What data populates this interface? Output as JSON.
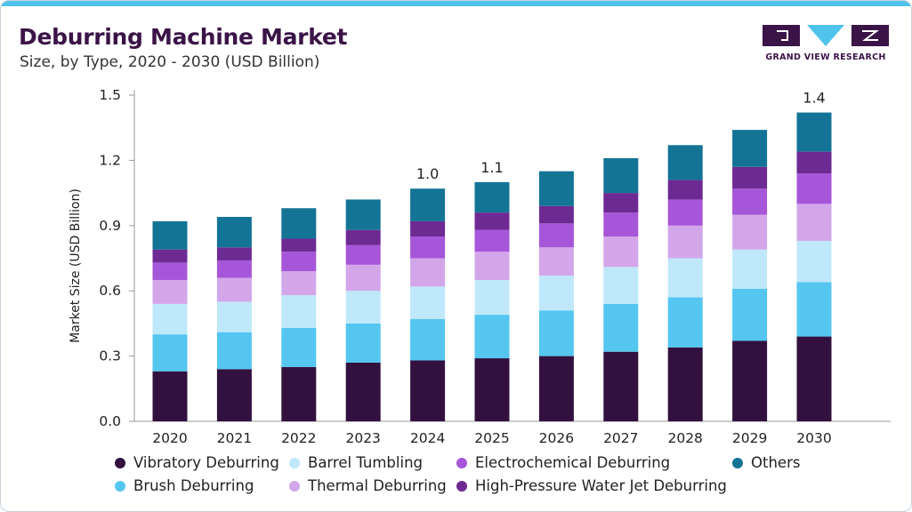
{
  "header": {
    "title": "Deburring Machine Market",
    "subtitle": "Size, by Type, 2020 - 2030 (USD Billion)"
  },
  "logo": {
    "text": "GRAND VIEW RESEARCH",
    "colors": {
      "dark": "#3b1447",
      "light": "#4fc3ec"
    }
  },
  "chart_data": {
    "type": "bar",
    "stacked": true,
    "title": "Deburring Machine Market",
    "subtitle": "Size, by Type, 2020 - 2030 (USD Billion)",
    "xlabel": "",
    "ylabel": "Market Size (USD Billion)",
    "ylim": [
      0,
      1.5
    ],
    "yticks": [
      "0.0",
      "0.3",
      "0.6",
      "0.9",
      "1.2",
      "1.5"
    ],
    "grid": false,
    "legend_position": "bottom",
    "categories": [
      "2020",
      "2021",
      "2022",
      "2023",
      "2024",
      "2025",
      "2026",
      "2027",
      "2028",
      "2029",
      "2030"
    ],
    "series": [
      {
        "name": "Vibratory Deburring",
        "color": "#32113f",
        "values": [
          0.23,
          0.24,
          0.25,
          0.27,
          0.28,
          0.29,
          0.3,
          0.32,
          0.34,
          0.37,
          0.39
        ]
      },
      {
        "name": "Brush Deburring",
        "color": "#54c6f0",
        "values": [
          0.17,
          0.17,
          0.18,
          0.18,
          0.19,
          0.2,
          0.21,
          0.22,
          0.23,
          0.24,
          0.25
        ]
      },
      {
        "name": "Barrel Tumbling",
        "color": "#bfe8fa",
        "values": [
          0.14,
          0.14,
          0.15,
          0.15,
          0.15,
          0.16,
          0.16,
          0.17,
          0.18,
          0.18,
          0.19
        ]
      },
      {
        "name": "Thermal Deburring",
        "color": "#d3a6ea",
        "values": [
          0.11,
          0.11,
          0.11,
          0.12,
          0.13,
          0.13,
          0.13,
          0.14,
          0.15,
          0.16,
          0.17
        ]
      },
      {
        "name": "Electrochemical Deburring",
        "color": "#a656d8",
        "values": [
          0.08,
          0.08,
          0.09,
          0.09,
          0.1,
          0.1,
          0.11,
          0.11,
          0.12,
          0.12,
          0.14
        ]
      },
      {
        "name": "High-Pressure Water Jet Deburring",
        "color": "#6d2a93",
        "values": [
          0.06,
          0.06,
          0.06,
          0.07,
          0.07,
          0.08,
          0.08,
          0.09,
          0.09,
          0.1,
          0.1
        ]
      },
      {
        "name": "Others",
        "color": "#137495",
        "values": [
          0.13,
          0.14,
          0.14,
          0.14,
          0.15,
          0.14,
          0.16,
          0.16,
          0.16,
          0.17,
          0.18
        ]
      }
    ],
    "data_labels": [
      {
        "category": "2024",
        "text": "1.0"
      },
      {
        "category": "2025",
        "text": "1.1"
      },
      {
        "category": "2030",
        "text": "1.4"
      }
    ]
  }
}
